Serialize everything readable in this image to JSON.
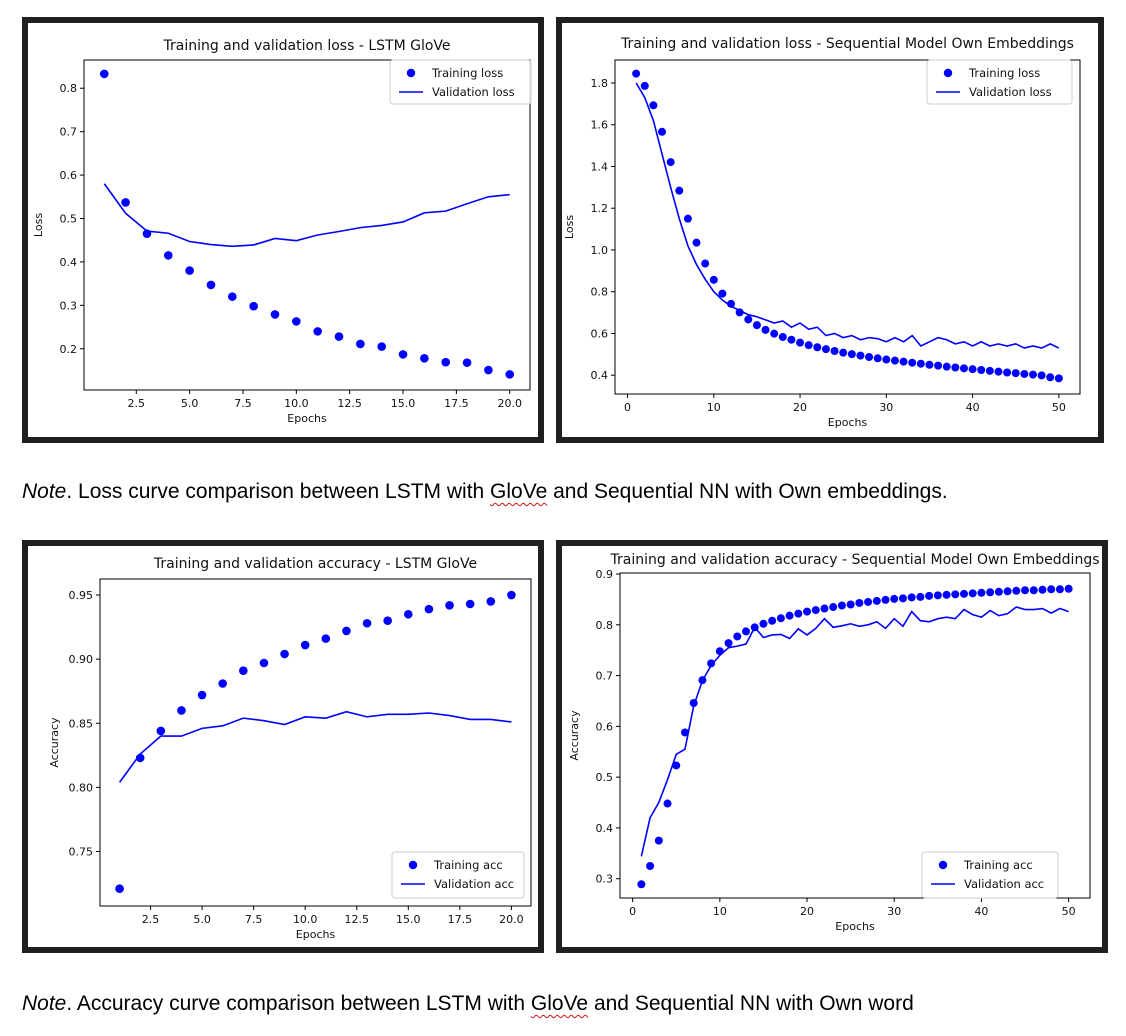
{
  "notes": {
    "loss": {
      "lead": "Note",
      "before": ". Loss curve comparison between LSTM with ",
      "flagged": "GloVe",
      "after": " and Sequential NN with Own embeddings."
    },
    "acc": {
      "lead": "Note",
      "before": ". Accuracy curve comparison between LSTM with ",
      "flagged": "GloVe",
      "after": " and Sequential NN with Own word"
    }
  },
  "colors": {
    "series": "#0000ff",
    "frame": "#1f1f1f",
    "squiggle": "#dd1111"
  },
  "chart_data": [
    {
      "id": "loss-lstm",
      "type": "line",
      "title": "Training and validation loss - LSTM GloVe",
      "xlabel": "Epochs",
      "ylabel": "Loss",
      "xlim": [
        0.05,
        20.95
      ],
      "ylim": [
        0.105,
        0.865
      ],
      "xticks": [
        2.5,
        5.0,
        7.5,
        10.0,
        12.5,
        15.0,
        17.5,
        20.0
      ],
      "xtick_labels": [
        "2.5",
        "5.0",
        "7.5",
        "10.0",
        "12.5",
        "15.0",
        "17.5",
        "20.0"
      ],
      "yticks": [
        0.2,
        0.3,
        0.4,
        0.5,
        0.6,
        0.7,
        0.8
      ],
      "ytick_labels": [
        "0.2",
        "0.3",
        "0.4",
        "0.5",
        "0.6",
        "0.7",
        "0.8"
      ],
      "grid": false,
      "legend": "top-right",
      "x": [
        1,
        2,
        3,
        4,
        5,
        6,
        7,
        8,
        9,
        10,
        11,
        12,
        13,
        14,
        15,
        16,
        17,
        18,
        19,
        20
      ],
      "series": [
        {
          "name": "Training loss",
          "style": "points",
          "values": [
            0.833,
            0.537,
            0.465,
            0.415,
            0.38,
            0.347,
            0.32,
            0.298,
            0.279,
            0.263,
            0.24,
            0.228,
            0.211,
            0.205,
            0.187,
            0.178,
            0.169,
            0.168,
            0.151,
            0.141
          ]
        },
        {
          "name": "Validation loss",
          "style": "line",
          "values": [
            0.58,
            0.512,
            0.471,
            0.466,
            0.447,
            0.44,
            0.436,
            0.439,
            0.454,
            0.449,
            0.462,
            0.47,
            0.479,
            0.484,
            0.492,
            0.513,
            0.517,
            0.534,
            0.55,
            0.555
          ]
        }
      ]
    },
    {
      "id": "loss-seq",
      "type": "line",
      "title": "Training and validation loss - Sequential Model Own Embeddings",
      "xlabel": "Epochs",
      "ylabel": "Loss",
      "xlim": [
        -1.45,
        52.45
      ],
      "ylim": [
        0.31,
        1.91
      ],
      "xticks": [
        0,
        10,
        20,
        30,
        40,
        50
      ],
      "xtick_labels": [
        "0",
        "10",
        "20",
        "30",
        "40",
        "50"
      ],
      "yticks": [
        0.4,
        0.6,
        0.8,
        1.0,
        1.2,
        1.4,
        1.6,
        1.8
      ],
      "ytick_labels": [
        "0.4",
        "0.6",
        "0.8",
        "1.0",
        "1.2",
        "1.4",
        "1.6",
        "1.8"
      ],
      "grid": false,
      "legend": "top-right",
      "x": [
        1,
        2,
        3,
        4,
        5,
        6,
        7,
        8,
        9,
        10,
        11,
        12,
        13,
        14,
        15,
        16,
        17,
        18,
        19,
        20,
        21,
        22,
        23,
        24,
        25,
        26,
        27,
        28,
        29,
        30,
        31,
        32,
        33,
        34,
        35,
        36,
        37,
        38,
        39,
        40,
        41,
        42,
        43,
        44,
        45,
        46,
        47,
        48,
        49,
        50
      ],
      "series": [
        {
          "name": "Training loss",
          "style": "points",
          "values": [
            1.845,
            1.786,
            1.693,
            1.566,
            1.421,
            1.284,
            1.15,
            1.035,
            0.935,
            0.857,
            0.791,
            0.742,
            0.701,
            0.667,
            0.64,
            0.617,
            0.599,
            0.583,
            0.57,
            0.556,
            0.544,
            0.534,
            0.525,
            0.516,
            0.508,
            0.501,
            0.494,
            0.487,
            0.481,
            0.475,
            0.47,
            0.465,
            0.46,
            0.455,
            0.45,
            0.446,
            0.441,
            0.437,
            0.433,
            0.429,
            0.425,
            0.421,
            0.417,
            0.413,
            0.41,
            0.406,
            0.403,
            0.399,
            0.39,
            0.385
          ]
        },
        {
          "name": "Validation loss",
          "style": "line",
          "values": [
            1.8,
            1.73,
            1.62,
            1.46,
            1.3,
            1.15,
            1.02,
            0.93,
            0.86,
            0.8,
            0.76,
            0.73,
            0.71,
            0.69,
            0.68,
            0.665,
            0.65,
            0.66,
            0.63,
            0.65,
            0.62,
            0.63,
            0.59,
            0.6,
            0.58,
            0.59,
            0.57,
            0.58,
            0.575,
            0.56,
            0.58,
            0.56,
            0.59,
            0.54,
            0.56,
            0.58,
            0.57,
            0.55,
            0.56,
            0.54,
            0.56,
            0.54,
            0.55,
            0.54,
            0.55,
            0.53,
            0.54,
            0.53,
            0.55,
            0.53
          ]
        }
      ]
    },
    {
      "id": "acc-lstm",
      "type": "line",
      "title": "Training and validation accuracy - LSTM GloVe",
      "xlabel": "Epochs",
      "ylabel": "Accuracy",
      "xlim": [
        0.05,
        20.95
      ],
      "ylim": [
        0.7075,
        0.9625
      ],
      "xticks": [
        2.5,
        5.0,
        7.5,
        10.0,
        12.5,
        15.0,
        17.5,
        20.0
      ],
      "xtick_labels": [
        "2.5",
        "5.0",
        "7.5",
        "10.0",
        "12.5",
        "15.0",
        "17.5",
        "20.0"
      ],
      "yticks": [
        0.75,
        0.8,
        0.85,
        0.9,
        0.95
      ],
      "ytick_labels": [
        "0.75",
        "0.80",
        "0.85",
        "0.90",
        "0.95"
      ],
      "grid": false,
      "legend": "bottom-right",
      "x": [
        1,
        2,
        3,
        4,
        5,
        6,
        7,
        8,
        9,
        10,
        11,
        12,
        13,
        14,
        15,
        16,
        17,
        18,
        19,
        20
      ],
      "series": [
        {
          "name": "Training acc",
          "style": "points",
          "values": [
            0.721,
            0.823,
            0.844,
            0.86,
            0.872,
            0.881,
            0.891,
            0.897,
            0.904,
            0.911,
            0.916,
            0.922,
            0.928,
            0.93,
            0.935,
            0.939,
            0.942,
            0.943,
            0.945,
            0.95
          ]
        },
        {
          "name": "Validation acc",
          "style": "line",
          "values": [
            0.804,
            0.826,
            0.84,
            0.84,
            0.846,
            0.848,
            0.854,
            0.852,
            0.849,
            0.855,
            0.854,
            0.859,
            0.855,
            0.857,
            0.857,
            0.858,
            0.856,
            0.853,
            0.853,
            0.851
          ]
        }
      ]
    },
    {
      "id": "acc-seq",
      "type": "line",
      "title": "Training and validation accuracy - Sequential Model Own Embeddings",
      "xlabel": "Epochs",
      "ylabel": "Accuracy",
      "xlim": [
        -1.45,
        52.45
      ],
      "ylim": [
        0.262,
        0.902
      ],
      "xticks": [
        0,
        10,
        20,
        30,
        40,
        50
      ],
      "xtick_labels": [
        "0",
        "10",
        "20",
        "30",
        "40",
        "50"
      ],
      "yticks": [
        0.3,
        0.4,
        0.5,
        0.6,
        0.7,
        0.8,
        0.9
      ],
      "ytick_labels": [
        "0.3",
        "0.4",
        "0.5",
        "0.6",
        "0.7",
        "0.8",
        "0.9"
      ],
      "grid": false,
      "legend": "bottom-right",
      "x": [
        1,
        2,
        3,
        4,
        5,
        6,
        7,
        8,
        9,
        10,
        11,
        12,
        13,
        14,
        15,
        16,
        17,
        18,
        19,
        20,
        21,
        22,
        23,
        24,
        25,
        26,
        27,
        28,
        29,
        30,
        31,
        32,
        33,
        34,
        35,
        36,
        37,
        38,
        39,
        40,
        41,
        42,
        43,
        44,
        45,
        46,
        47,
        48,
        49,
        50
      ],
      "series": [
        {
          "name": "Training acc",
          "style": "points",
          "values": [
            0.289,
            0.325,
            0.375,
            0.448,
            0.523,
            0.588,
            0.646,
            0.691,
            0.724,
            0.748,
            0.764,
            0.777,
            0.787,
            0.795,
            0.802,
            0.808,
            0.813,
            0.818,
            0.822,
            0.826,
            0.829,
            0.832,
            0.835,
            0.838,
            0.84,
            0.843,
            0.845,
            0.847,
            0.849,
            0.851,
            0.852,
            0.854,
            0.855,
            0.857,
            0.858,
            0.859,
            0.86,
            0.861,
            0.862,
            0.863,
            0.864,
            0.865,
            0.866,
            0.867,
            0.868,
            0.868,
            0.869,
            0.87,
            0.87,
            0.871
          ]
        },
        {
          "name": "Validation acc",
          "style": "line",
          "values": [
            0.344,
            0.42,
            0.45,
            0.495,
            0.545,
            0.555,
            0.64,
            0.69,
            0.72,
            0.74,
            0.755,
            0.758,
            0.762,
            0.795,
            0.775,
            0.78,
            0.781,
            0.773,
            0.792,
            0.78,
            0.793,
            0.812,
            0.795,
            0.798,
            0.802,
            0.797,
            0.8,
            0.806,
            0.793,
            0.812,
            0.797,
            0.826,
            0.808,
            0.806,
            0.812,
            0.815,
            0.812,
            0.83,
            0.82,
            0.815,
            0.828,
            0.818,
            0.822,
            0.835,
            0.83,
            0.83,
            0.832,
            0.823,
            0.832,
            0.826
          ]
        }
      ]
    }
  ]
}
